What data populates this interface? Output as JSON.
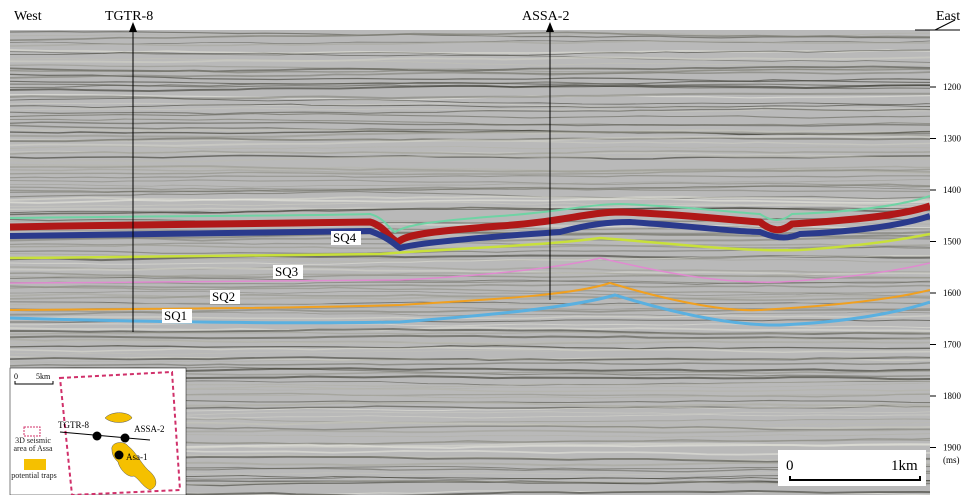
{
  "header": {
    "west": "West",
    "east": "East"
  },
  "wells": [
    "TGTR-8",
    "ASSA-2"
  ],
  "time_axis": {
    "ticks": [
      "1200",
      "1300",
      "1400",
      "1500",
      "1600",
      "1700",
      "1800",
      "1900"
    ],
    "unit": "(ms)"
  },
  "sequences": [
    "SQ1",
    "SQ2",
    "SQ3",
    "SQ4"
  ],
  "scale_bar": {
    "start": "0",
    "end": "1km"
  },
  "inset": {
    "scale_start": "0",
    "scale_end": "5km",
    "wells": [
      "TGTR-8",
      "ASSA-2",
      "Asa-1"
    ],
    "legend": [
      "3D seismic area of Assa",
      "potential traps"
    ]
  }
}
